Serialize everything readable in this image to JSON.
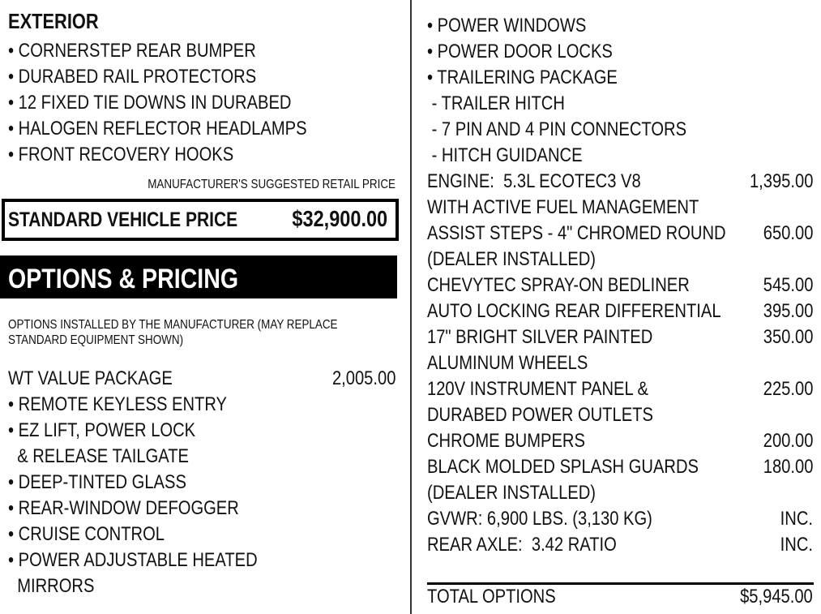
{
  "exterior": {
    "heading": "EXTERIOR",
    "items": [
      "• CORNERSTEP REAR BUMPER",
      "• DURABED RAIL PROTECTORS",
      "• 12 FIXED TIE DOWNS IN DURABED",
      "• HALOGEN REFLECTOR HEADLAMPS",
      "• FRONT RECOVERY HOOKS"
    ]
  },
  "msrp_label": "MANUFACTURER'S SUGGESTED RETAIL PRICE",
  "standard": {
    "label": "STANDARD VEHICLE PRICE",
    "price": "$32,900.00"
  },
  "options_heading": "OPTIONS & PRICING",
  "options_note": [
    "OPTIONS INSTALLED BY THE MANUFACTURER (MAY REPLACE",
    "STANDARD EQUIPMENT SHOWN)"
  ],
  "wt_package": {
    "label": "WT VALUE PACKAGE",
    "price": "2,005.00",
    "items": [
      "• REMOTE KEYLESS ENTRY",
      "• EZ LIFT, POWER LOCK",
      "  & RELEASE TAILGATE",
      "• DEEP-TINTED GLASS",
      "• REAR-WINDOW DEFOGGER",
      "• CRUISE CONTROL",
      "• POWER ADJUSTABLE HEATED",
      "  MIRRORS"
    ]
  },
  "right_lines": [
    {
      "text": "• POWER WINDOWS",
      "price": ""
    },
    {
      "text": "• POWER DOOR LOCKS",
      "price": ""
    },
    {
      "text": "• TRAILERING PACKAGE",
      "price": ""
    },
    {
      "text": " - TRAILER HITCH",
      "price": ""
    },
    {
      "text": " - 7 PIN AND 4 PIN CONNECTORS",
      "price": ""
    },
    {
      "text": " - HITCH GUIDANCE",
      "price": ""
    },
    {
      "text": "ENGINE:  5.3L ECOTEC3 V8",
      "price": "1,395.00"
    },
    {
      "text": "WITH ACTIVE FUEL MANAGEMENT",
      "price": ""
    },
    {
      "text": "ASSIST STEPS - 4\" CHROMED ROUND",
      "price": "650.00"
    },
    {
      "text": "(DEALER INSTALLED)",
      "price": ""
    },
    {
      "text": "CHEVYTEC SPRAY-ON BEDLINER",
      "price": "545.00"
    },
    {
      "text": "AUTO LOCKING REAR DIFFERENTIAL",
      "price": "395.00"
    },
    {
      "text": "17\" BRIGHT SILVER PAINTED",
      "price": "350.00"
    },
    {
      "text": "ALUMINUM WHEELS",
      "price": ""
    },
    {
      "text": "120V INSTRUMENT PANEL &",
      "price": "225.00"
    },
    {
      "text": "DURABED POWER OUTLETS",
      "price": ""
    },
    {
      "text": "CHROME BUMPERS",
      "price": "200.00"
    },
    {
      "text": "BLACK MOLDED SPLASH GUARDS",
      "price": "180.00"
    },
    {
      "text": "(DEALER INSTALLED)",
      "price": ""
    },
    {
      "text": "GVWR: 6,900 LBS. (3,130 KG)",
      "price": "INC."
    },
    {
      "text": "REAR AXLE:  3.42 RATIO",
      "price": "INC."
    }
  ],
  "total": {
    "label": "TOTAL OPTIONS",
    "price": "$5,945.00"
  }
}
